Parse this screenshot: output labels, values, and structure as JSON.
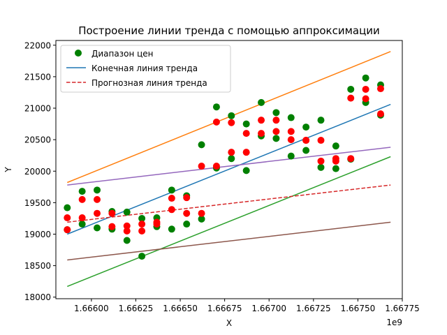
{
  "chart_data": {
    "type": "scatter",
    "title": "Построение линии тренда с помощью аппроксимации",
    "xlabel": "X",
    "ylabel": "Y",
    "x_offset_label": "1e9",
    "xlim": [
      1666580000,
      1666775000
    ],
    "ylim": [
      17975,
      22075
    ],
    "x_ticks": [
      1666600000,
      1666625000,
      1666650000,
      1666675000,
      1666700000,
      1666725000,
      1666750000,
      1666775000
    ],
    "x_tick_labels": [
      "1.66600",
      "1.66625",
      "1.66650",
      "1.66675",
      "1.66700",
      "1.66725",
      "1.66750",
      "1.66775"
    ],
    "y_ticks": [
      18000,
      18500,
      19000,
      19500,
      20000,
      20500,
      21000,
      21500,
      22000
    ],
    "y_tick_labels": [
      "18000",
      "18500",
      "19000",
      "19500",
      "20000",
      "20500",
      "21000",
      "21500",
      "22000"
    ],
    "legend_position": "top-left",
    "legend": [
      {
        "label": "Диапазон цен",
        "kind": "marker",
        "color": "#008000"
      },
      {
        "label": "Конечная линия тренда",
        "kind": "line",
        "color": "#1f77b4"
      },
      {
        "label": "Прогнозная линия тренда",
        "kind": "dashed",
        "color": "#d62728"
      }
    ],
    "scatter_series": [
      {
        "color": "#008000",
        "points": [
          [
            1666586400,
            19420
          ],
          [
            1666586400,
            19070
          ],
          [
            1666594800,
            19160
          ],
          [
            1666594800,
            19680
          ],
          [
            1666603200,
            19700
          ],
          [
            1666603200,
            19100
          ],
          [
            1666611600,
            19080
          ],
          [
            1666611600,
            19360
          ],
          [
            1666620000,
            18900
          ],
          [
            1666620000,
            19350
          ],
          [
            1666628400,
            18650
          ],
          [
            1666628400,
            19250
          ],
          [
            1666636800,
            19120
          ],
          [
            1666636800,
            19260
          ],
          [
            1666645200,
            19700
          ],
          [
            1666645200,
            19080
          ],
          [
            1666653600,
            19610
          ],
          [
            1666653600,
            19160
          ],
          [
            1666662000,
            20420
          ],
          [
            1666662000,
            19240
          ],
          [
            1666670400,
            21020
          ],
          [
            1666670400,
            20050
          ],
          [
            1666678800,
            20880
          ],
          [
            1666678800,
            20200
          ],
          [
            1666687200,
            20750
          ],
          [
            1666687200,
            20010
          ],
          [
            1666695600,
            21090
          ],
          [
            1666695600,
            20560
          ],
          [
            1666704000,
            20930
          ],
          [
            1666704000,
            20520
          ],
          [
            1666712400,
            20850
          ],
          [
            1666712400,
            20240
          ],
          [
            1666720800,
            20700
          ],
          [
            1666720800,
            20330
          ],
          [
            1666729200,
            20810
          ],
          [
            1666729200,
            20060
          ],
          [
            1666737600,
            20400
          ],
          [
            1666737600,
            20040
          ],
          [
            1666746000,
            21300
          ],
          [
            1666746000,
            20190
          ],
          [
            1666754400,
            21480
          ],
          [
            1666754400,
            21090
          ],
          [
            1666762800,
            21370
          ],
          [
            1666762800,
            20890
          ]
        ]
      },
      {
        "color": "#ff0000",
        "points": [
          [
            1666586400,
            19260
          ],
          [
            1666586400,
            19070
          ],
          [
            1666594800,
            19550
          ],
          [
            1666594800,
            19260
          ],
          [
            1666603200,
            19550
          ],
          [
            1666603200,
            19330
          ],
          [
            1666611600,
            19330
          ],
          [
            1666611600,
            19120
          ],
          [
            1666620000,
            19130
          ],
          [
            1666620000,
            19050
          ],
          [
            1666628400,
            19160
          ],
          [
            1666628400,
            19050
          ],
          [
            1666636800,
            19190
          ],
          [
            1666636800,
            19160
          ],
          [
            1666645200,
            19570
          ],
          [
            1666645200,
            19390
          ],
          [
            1666653600,
            19580
          ],
          [
            1666653600,
            19330
          ],
          [
            1666662000,
            20080
          ],
          [
            1666662000,
            19330
          ],
          [
            1666670400,
            20780
          ],
          [
            1666670400,
            20080
          ],
          [
            1666678800,
            20770
          ],
          [
            1666678800,
            20300
          ],
          [
            1666687200,
            20600
          ],
          [
            1666687200,
            20300
          ],
          [
            1666695600,
            20810
          ],
          [
            1666695600,
            20600
          ],
          [
            1666704000,
            20810
          ],
          [
            1666704000,
            20630
          ],
          [
            1666712400,
            20630
          ],
          [
            1666712400,
            20500
          ],
          [
            1666720800,
            20490
          ],
          [
            1666720800,
            20490
          ],
          [
            1666729200,
            20490
          ],
          [
            1666729200,
            20160
          ],
          [
            1666737600,
            20200
          ],
          [
            1666737600,
            20160
          ],
          [
            1666746000,
            21160
          ],
          [
            1666746000,
            20200
          ],
          [
            1666754400,
            21300
          ],
          [
            1666754400,
            21150
          ],
          [
            1666762800,
            21310
          ],
          [
            1666762800,
            20910
          ]
        ]
      }
    ],
    "line_series": [
      {
        "color": "#1f77b4",
        "dashed": false,
        "x": [
          1666586400,
          1666768400
        ],
        "y": [
          19000,
          21060
        ]
      },
      {
        "color": "#ff7f0e",
        "dashed": false,
        "x": [
          1666586400,
          1666768400
        ],
        "y": [
          19820,
          21900
        ]
      },
      {
        "color": "#2ca02c",
        "dashed": false,
        "x": [
          1666586400,
          1666768400
        ],
        "y": [
          18170,
          20230
        ]
      },
      {
        "color": "#9467bd",
        "dashed": false,
        "x": [
          1666586400,
          1666768400
        ],
        "y": [
          19780,
          20380
        ]
      },
      {
        "color": "#d62728",
        "dashed": true,
        "x": [
          1666586400,
          1666768400
        ],
        "y": [
          19190,
          19780
        ]
      },
      {
        "color": "#8c564b",
        "dashed": false,
        "x": [
          1666586400,
          1666768400
        ],
        "y": [
          18590,
          19190
        ]
      }
    ]
  }
}
